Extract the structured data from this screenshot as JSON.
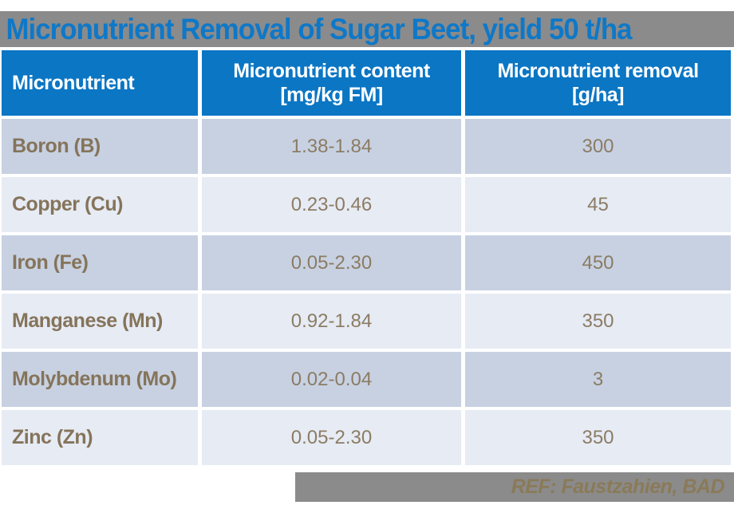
{
  "slide": {
    "title": "Micronutrient Removal of Sugar Beet, yield 50 t/ha",
    "footer_ref": "REF: Faustzahien, BAD"
  },
  "table": {
    "headers": [
      {
        "line1": "Micronutrient",
        "line2": ""
      },
      {
        "line1": "Micronutrient content",
        "line2": "[mg/kg FM]"
      },
      {
        "line1": "Micronutrient removal",
        "line2": "[g/ha]"
      }
    ],
    "rows": [
      {
        "name": "Boron (B)",
        "content": "1.38-1.84",
        "removal": "300"
      },
      {
        "name": "Copper (Cu)",
        "content": "0.23-0.46",
        "removal": "45"
      },
      {
        "name": "Iron (Fe)",
        "content": "0.05-2.30",
        "removal": "450"
      },
      {
        "name": "Manganese (Mn)",
        "content": "0.92-1.84",
        "removal": "350"
      },
      {
        "name": "Molybdenum (Mo)",
        "content": "0.02-0.04",
        "removal": "3"
      },
      {
        "name": "Zinc (Zn)",
        "content": "0.05-2.30",
        "removal": "350"
      }
    ]
  },
  "colors": {
    "header_blue": "#0a76c4",
    "title_blue": "#0e78c8",
    "bar_gray": "#8b8b8b",
    "row_dark": "#c7d1e2",
    "row_light": "#e6ebf4",
    "name_text_brown": "#85745a",
    "value_text_brown": "#8c7c64",
    "footer_text_brown": "#8a7a58"
  },
  "chart_data": {
    "type": "table",
    "title": "Micronutrient Removal of Sugar Beet, yield 50 t/ha",
    "columns": [
      "Micronutrient",
      "Micronutrient content [mg/kg FM]",
      "Micronutrient removal [g/ha]"
    ],
    "rows": [
      [
        "Boron (B)",
        "1.38-1.84",
        300
      ],
      [
        "Copper (Cu)",
        "0.23-0.46",
        45
      ],
      [
        "Iron (Fe)",
        "0.05-2.30",
        450
      ],
      [
        "Manganese (Mn)",
        "0.92-1.84",
        350
      ],
      [
        "Molybdenum (Mo)",
        "0.02-0.04",
        3
      ],
      [
        "Zinc (Zn)",
        "0.05-2.30",
        350
      ]
    ],
    "footnote": "REF: Faustzahien, BAD"
  }
}
